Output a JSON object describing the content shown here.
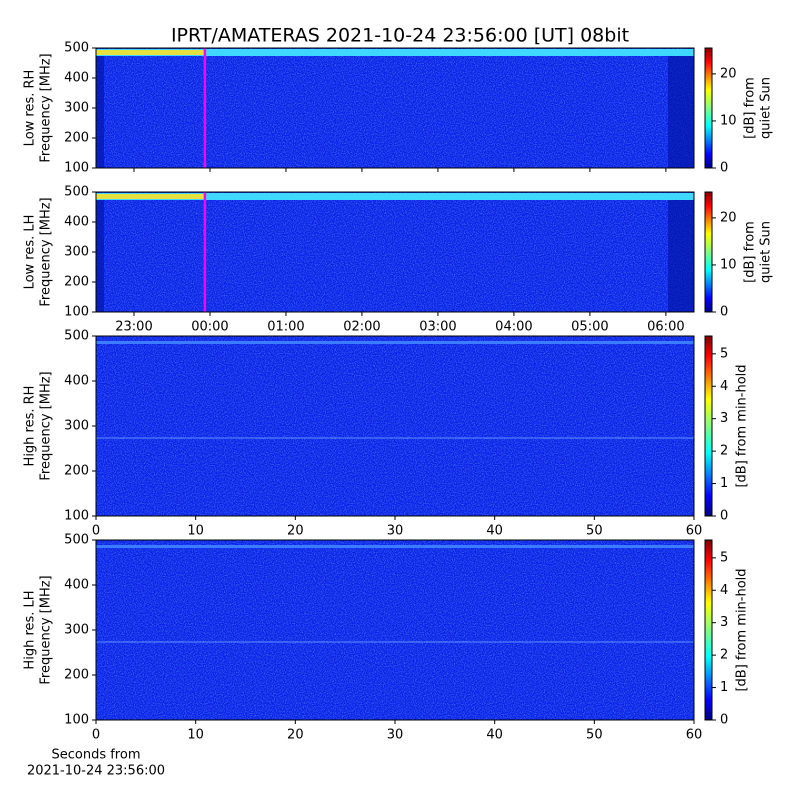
{
  "title": "IPRT/AMATERAS 2021-10-24 23:56:00 [UT]   08bit",
  "chart_data": [
    {
      "type": "spectrogram",
      "ylabel_lines": [
        "Low res. RH",
        "Frequency [MHz]"
      ],
      "xlim": [
        22.5,
        30.37
      ],
      "xticks": [
        23,
        24,
        25,
        26,
        27,
        28,
        29,
        30
      ],
      "ylim": [
        100,
        500
      ],
      "yticks": [
        100,
        200,
        300,
        400,
        500
      ],
      "marker_x": 23.933,
      "marker_color": "#ff00ff",
      "colormap": "jet",
      "clim": [
        0,
        25.5
      ],
      "cticks": [
        0,
        10,
        20
      ],
      "clabel_lines": [
        "[dB] from",
        "quiet Sun"
      ]
    },
    {
      "type": "spectrogram",
      "ylabel_lines": [
        "Low res. LH",
        "Frequency [MHz]"
      ],
      "xlim": [
        22.5,
        30.37
      ],
      "xticks": [
        {
          "value": 23,
          "label": "23:00"
        },
        {
          "value": 24,
          "label": "00:00"
        },
        {
          "value": 25,
          "label": "01:00"
        },
        {
          "value": 26,
          "label": "02:00"
        },
        {
          "value": 27,
          "label": "03:00"
        },
        {
          "value": 28,
          "label": "04:00"
        },
        {
          "value": 29,
          "label": "05:00"
        },
        {
          "value": 30,
          "label": "06:00"
        }
      ],
      "ylim": [
        100,
        500
      ],
      "yticks": [
        100,
        200,
        300,
        400,
        500
      ],
      "marker_x": 23.933,
      "marker_color": "#ff00ff",
      "colormap": "jet",
      "clim": [
        0,
        25.5
      ],
      "cticks": [
        0,
        10,
        20
      ],
      "clabel_lines": [
        "[dB] from",
        "quiet Sun"
      ]
    },
    {
      "type": "spectrogram",
      "ylabel_lines": [
        "High res. RH",
        "Frequency [MHz]"
      ],
      "xlim": [
        0,
        60
      ],
      "xticks": [
        0,
        10,
        20,
        30,
        40,
        50,
        60
      ],
      "ylim": [
        100,
        500
      ],
      "yticks": [
        100,
        200,
        300,
        400,
        500
      ],
      "colormap": "jet",
      "clim": [
        0,
        5.55
      ],
      "cticks": [
        0,
        1,
        2,
        3,
        4,
        5
      ],
      "clabel_lines": [
        "[dB] from min-hold"
      ]
    },
    {
      "type": "spectrogram",
      "ylabel_lines": [
        "High res. LH",
        "Frequency [MHz]"
      ],
      "xlim": [
        0,
        60
      ],
      "xticks": [
        0,
        10,
        20,
        30,
        40,
        50,
        60
      ],
      "ylim": [
        100,
        500
      ],
      "yticks": [
        100,
        200,
        300,
        400,
        500
      ],
      "colormap": "jet",
      "clim": [
        0,
        5.55
      ],
      "cticks": [
        0,
        1,
        2,
        3,
        4,
        5
      ],
      "clabel_lines": [
        "[dB] from min-hold"
      ],
      "xlabel_lines": [
        "Seconds from",
        "2021-10-24 23:56:00"
      ]
    }
  ]
}
